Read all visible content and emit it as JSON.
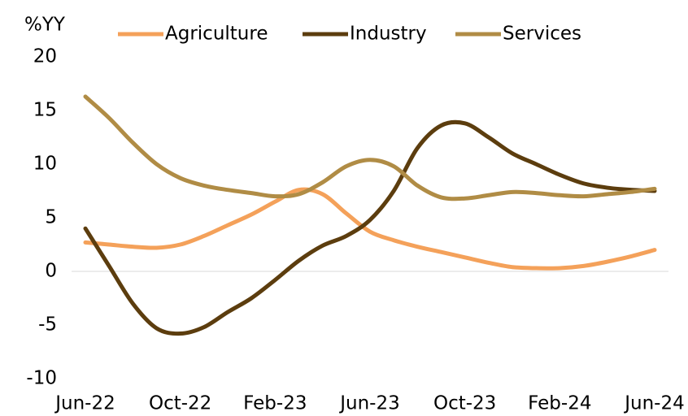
{
  "chart_data": {
    "type": "line",
    "y_axis_label": "%YY",
    "categories": [
      "Jun-22",
      null,
      null,
      null,
      "Oct-22",
      null,
      null,
      null,
      "Feb-23",
      null,
      null,
      null,
      "Jun-23",
      null,
      null,
      null,
      "Oct-23",
      null,
      null,
      null,
      "Feb-24",
      null,
      null,
      null,
      "Jun-24"
    ],
    "series": [
      {
        "name": "Agriculture",
        "color": "#f4a15a",
        "values": [
          2.7,
          2.5,
          2.3,
          2.2,
          2.5,
          3.3,
          4.3,
          5.3,
          6.5,
          7.6,
          7.2,
          5.4,
          3.7,
          2.9,
          2.3,
          1.8,
          1.3,
          0.8,
          0.4,
          0.3,
          0.3,
          0.5,
          0.9,
          1.4,
          2.0
        ]
      },
      {
        "name": "Industry",
        "color": "#5c3d0e",
        "values": [
          4.0,
          0.5,
          -3.0,
          -5.3,
          -5.8,
          -5.2,
          -3.8,
          -2.5,
          -0.8,
          1.0,
          2.4,
          3.3,
          4.8,
          7.5,
          11.5,
          13.6,
          13.8,
          12.5,
          11.0,
          10.0,
          9.0,
          8.2,
          7.8,
          7.6,
          7.5
        ]
      },
      {
        "name": "Services",
        "color": "#b08c45",
        "values": [
          16.3,
          14.3,
          12.0,
          10.0,
          8.7,
          8.0,
          7.6,
          7.3,
          7.0,
          7.2,
          8.3,
          9.8,
          10.4,
          9.8,
          8.0,
          6.9,
          6.8,
          7.1,
          7.4,
          7.3,
          7.1,
          7.0,
          7.2,
          7.4,
          7.7
        ]
      }
    ],
    "ylim": [
      -10,
      20
    ],
    "yticks": [
      -10,
      -5,
      0,
      5,
      10,
      15,
      20
    ],
    "legend": "top",
    "grid": false
  }
}
